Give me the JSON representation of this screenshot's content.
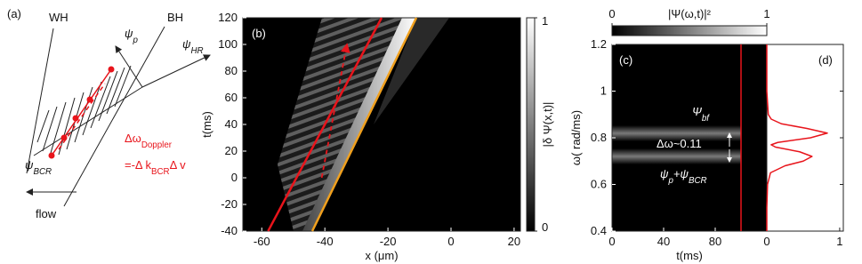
{
  "diagram": {
    "panel": "(a)",
    "wh": "WH",
    "bh": "BH",
    "psi_p": [
      {
        "t": "ψ"
      },
      {
        "t": "p",
        "sub": true
      }
    ],
    "psi_hr": [
      {
        "t": "ψ"
      },
      {
        "t": "HR",
        "sub": true
      }
    ],
    "psi_bcr": [
      {
        "t": "ψ"
      },
      {
        "t": "BCR",
        "sub": true
      }
    ],
    "flow": "flow",
    "doppler": [
      {
        "t": "Δω"
      },
      {
        "t": "Doppler",
        "sub": true
      }
    ],
    "doppler_eq": [
      {
        "t": "=-Δ k"
      },
      {
        "t": "BCR",
        "sub": true
      },
      {
        "t": "Δ v"
      }
    ]
  },
  "chart_data": [
    {
      "type": "heatmap",
      "panel": "(b)",
      "xlabel": "x (μm)",
      "ylabel": "t(ms)",
      "xlim": [
        -66,
        22
      ],
      "xticks": [
        -60,
        -40,
        -20,
        0,
        20
      ],
      "ylim": [
        -40,
        120
      ],
      "yticks": [
        -40,
        -20,
        0,
        20,
        40,
        60,
        80,
        100,
        120
      ],
      "colorbar": {
        "label": "|δ Ψ(x,t)|",
        "lim": [
          0,
          1
        ],
        "ticks": [
          0,
          1
        ]
      },
      "lines": [
        {
          "color": "#e8141b",
          "x": [
            -58,
            -22
          ],
          "y": [
            -40,
            120
          ]
        },
        {
          "color": "#f0a01e",
          "x": [
            -44,
            -11
          ],
          "y": [
            -40,
            120
          ]
        },
        {
          "color": "#e8141b",
          "dashed": true,
          "x": [
            -41,
            -33
          ],
          "y": [
            0,
            100
          ]
        }
      ]
    },
    {
      "type": "heatmap",
      "panel": "(c)",
      "panel2": "(d)",
      "xlabel": "t(ms)",
      "ylabel": "ω( rad/ms)",
      "xlim": [
        0,
        120
      ],
      "xticks": [
        0,
        40,
        80
      ],
      "ylim": [
        0.4,
        1.2
      ],
      "yticks": [
        0.4,
        0.6,
        0.8,
        1,
        1.2
      ],
      "colorbar": {
        "label": "|Ψ(ω,t)|²",
        "lim": [
          0,
          1
        ],
        "ticks": [
          0,
          1
        ]
      },
      "vline": {
        "t": 100,
        "color": "#e8141b"
      },
      "annotations": [
        [
          {
            "t": "Ψ"
          },
          {
            "t": "bf",
            "sub": true
          }
        ],
        [
          {
            "t": "Δω~0.11"
          }
        ],
        [
          {
            "t": "ψ"
          },
          {
            "t": "p",
            "sub": true
          },
          {
            "t": "+ψ"
          },
          {
            "t": "BCR",
            "sub": true
          }
        ]
      ],
      "spectrum": {
        "color": "#e8141b",
        "xlim": [
          0,
          1.05
        ],
        "xticks": [
          0,
          1
        ],
        "omega": [
          0.4,
          0.5,
          0.6,
          0.65,
          0.68,
          0.7,
          0.72,
          0.74,
          0.76,
          0.77,
          0.78,
          0.8,
          0.82,
          0.84,
          0.86,
          0.88,
          0.9,
          1.0,
          1.1,
          1.2
        ],
        "values": [
          0,
          0,
          0.01,
          0.05,
          0.25,
          0.5,
          0.62,
          0.45,
          0.12,
          0.06,
          0.15,
          0.6,
          0.83,
          0.55,
          0.2,
          0.06,
          0.02,
          0,
          0,
          0
        ]
      }
    }
  ]
}
